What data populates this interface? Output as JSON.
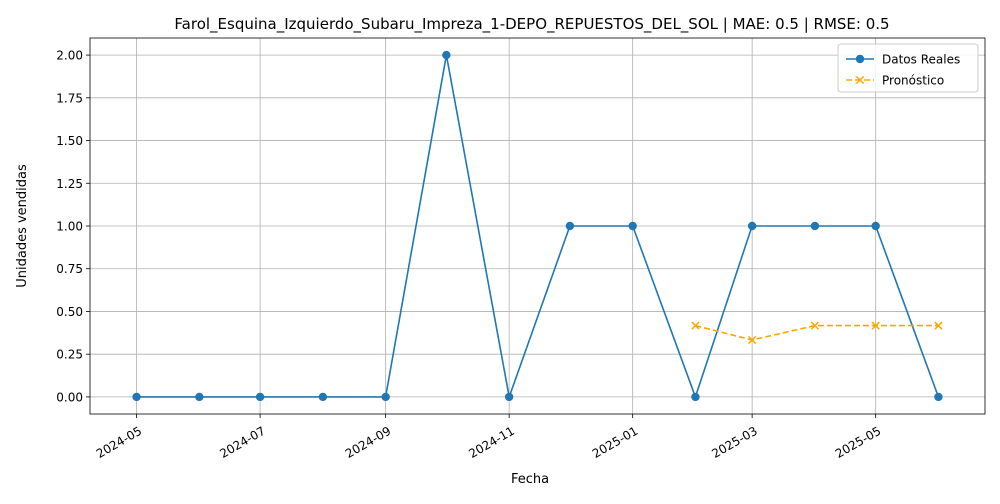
{
  "chart_data": {
    "type": "line",
    "title": "Farol_Esquina_Izquierdo_Subaru_Impreza_1-DEPO_REPUESTOS_DEL_SOL | MAE: 0.5 | RMSE: 0.5",
    "xlabel": "Fecha",
    "ylabel": "Unidades vendidas",
    "xlim": [
      "2024-04-08",
      "2025-06-24"
    ],
    "ylim": [
      -0.1,
      2.1
    ],
    "x_ticks": [
      "2024-05",
      "2024-07",
      "2024-09",
      "2024-11",
      "2025-01",
      "2025-03",
      "2025-05"
    ],
    "y_ticks": [
      "0.00",
      "0.25",
      "0.50",
      "0.75",
      "1.00",
      "1.25",
      "1.50",
      "1.75",
      "2.00"
    ],
    "grid": true,
    "legend_position": "top-right",
    "series": [
      {
        "name": "Datos Reales",
        "color": "#1f77b4",
        "marker": "circle",
        "linestyle": "solid",
        "x": [
          "2024-05-01",
          "2024-06-01",
          "2024-07-01",
          "2024-08-01",
          "2024-09-01",
          "2024-10-01",
          "2024-11-01",
          "2024-12-01",
          "2025-01-01",
          "2025-02-01",
          "2025-03-01",
          "2025-04-01",
          "2025-05-01",
          "2025-06-01"
        ],
        "y": [
          0,
          0,
          0,
          0,
          0,
          2,
          0,
          1,
          1,
          0,
          1,
          1,
          1,
          0
        ]
      },
      {
        "name": "Pronóstico",
        "color": "#ffa500",
        "marker": "x",
        "linestyle": "dashed",
        "x": [
          "2025-02-01",
          "2025-03-01",
          "2025-04-01",
          "2025-05-01",
          "2025-06-01"
        ],
        "y": [
          0.417,
          0.333,
          0.417,
          0.417,
          0.417
        ]
      }
    ]
  }
}
